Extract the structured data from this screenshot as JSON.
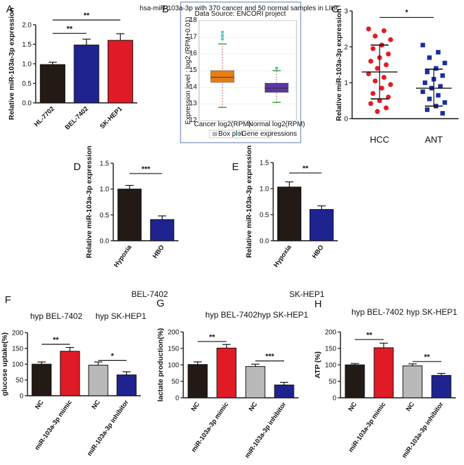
{
  "colors": {
    "black": "#231a16",
    "blue": "#1f2390",
    "red": "#e01b25",
    "gray": "#b9b9b9",
    "scatter_red": "#e51b26",
    "scatter_blue": "#1a2fa0",
    "box_orange": "#ea7d12",
    "box_purple": "#5a37a5"
  },
  "chart_data": [
    {
      "id": "A",
      "panel_label": "A",
      "type": "bar",
      "ylabel": "Relative miR-103a-3p expression",
      "ylim": [
        0,
        2.0
      ],
      "yticks": [
        "0.0",
        "0.5",
        "1.0",
        "1.5",
        "2.0"
      ],
      "ytick_values": [
        0,
        0.5,
        1.0,
        1.5,
        2.0
      ],
      "categories": [
        "HL-7702",
        "BEL-7402",
        "SK-HEP1"
      ],
      "values": [
        0.98,
        1.48,
        1.6
      ],
      "errors": [
        0.06,
        0.15,
        0.17
      ],
      "bar_colors": [
        "black",
        "blue",
        "red"
      ],
      "sig": [
        {
          "from": 0,
          "to": 1,
          "label": "**",
          "y": 1.78
        },
        {
          "from": 0,
          "to": 2,
          "label": "**",
          "y": 2.12
        }
      ]
    },
    {
      "id": "B",
      "panel_label": "B",
      "type": "box",
      "title": "hsa-miR-103a-3p with 370 cancer and 50 normal samples in LIHC",
      "subtitle": "Data Source: ENCORI project",
      "ylabel": "Expression level : log2 (RPM+0.01)",
      "ylim": [
        12,
        18
      ],
      "yticks": [
        "12",
        "13",
        "14",
        "15",
        "16",
        "17",
        "18"
      ],
      "ytick_values": [
        12,
        13,
        14,
        15,
        16,
        17,
        18
      ],
      "categories": [
        "Cancer log2(RPM)",
        "Normal log2(RPM)"
      ],
      "boxes": [
        {
          "q1": 14.3,
          "median": 14.6,
          "q3": 15.0,
          "whisker_low": 12.8,
          "whisker_high": 16.6,
          "outliers": [
            16.9,
            17.1,
            17.3
          ],
          "color": "box_orange"
        },
        {
          "q1": 13.7,
          "median": 13.95,
          "q3": 14.25,
          "whisker_low": 13.1,
          "whisker_high": 15.0,
          "outliers": [
            15.15
          ],
          "color": "box_purple"
        }
      ],
      "legend": [
        "Box plot",
        "Gene expressions"
      ]
    },
    {
      "id": "C",
      "panel_label": "C",
      "type": "scatter",
      "ylabel": "Relative miR-103a-3p expression",
      "ylim": [
        0,
        3
      ],
      "yticks": [
        "0",
        "1",
        "2",
        "3"
      ],
      "ytick_values": [
        0,
        1,
        2,
        3
      ],
      "categories": [
        "HCC",
        "ANT"
      ],
      "series": [
        {
          "name": "HCC",
          "values": [
            2.5,
            2.45,
            2.3,
            2.2,
            2.05,
            1.95,
            1.8,
            1.7,
            1.6,
            1.5,
            1.4,
            1.25,
            1.15,
            1.05,
            0.95,
            0.85,
            0.7,
            0.6,
            0.5,
            0.42,
            0.3,
            0.2
          ],
          "mean": 1.3,
          "sd_low": 0.55,
          "sd_high": 2.05,
          "color": "scatter_red",
          "marker": "circle"
        },
        {
          "name": "ANT",
          "values": [
            2.05,
            1.85,
            1.7,
            1.55,
            1.4,
            1.3,
            1.2,
            1.1,
            1.0,
            0.9,
            0.85,
            0.75,
            0.65,
            0.55,
            0.45,
            0.35,
            0.25,
            0.15
          ],
          "mean": 0.85,
          "sd_low": 0.35,
          "sd_high": 1.38,
          "color": "scatter_blue",
          "marker": "square"
        }
      ],
      "sig": [
        {
          "from": 0,
          "to": 1,
          "label": "*",
          "y": 2.82
        }
      ]
    },
    {
      "id": "D",
      "panel_label": "D",
      "type": "bar",
      "caption": "BEL-7402",
      "ylabel": "Relative miR-103a-3p expression",
      "ylim": [
        0,
        1.5
      ],
      "yticks": [
        "0.0",
        "0.5",
        "1.0",
        "1.5"
      ],
      "ytick_values": [
        0,
        0.5,
        1.0,
        1.5
      ],
      "categories": [
        "Hypoxia",
        "HBO"
      ],
      "values": [
        1.0,
        0.41
      ],
      "errors": [
        0.07,
        0.07
      ],
      "bar_colors": [
        "black",
        "blue"
      ],
      "sig": [
        {
          "from": 0,
          "to": 1,
          "label": "***",
          "y": 1.3
        }
      ]
    },
    {
      "id": "E",
      "panel_label": "E",
      "type": "bar",
      "caption": "SK-HEP1",
      "ylabel": "Relative miR-103a-3p expression",
      "ylim": [
        0,
        1.5
      ],
      "yticks": [
        "0.0",
        "0.5",
        "1.0",
        "1.5"
      ],
      "ytick_values": [
        0,
        0.5,
        1.0,
        1.5
      ],
      "categories": [
        "Hypoxia",
        "HBO"
      ],
      "values": [
        1.03,
        0.6
      ],
      "errors": [
        0.1,
        0.07
      ],
      "bar_colors": [
        "black",
        "blue"
      ],
      "sig": [
        {
          "from": 0,
          "to": 1,
          "label": "**",
          "y": 1.3
        }
      ]
    },
    {
      "id": "F",
      "panel_label": "F",
      "type": "bar",
      "group_titles": [
        "hyp BEL-7402",
        "hyp SK-HEP1"
      ],
      "ylabel": "glucose uptake(%)",
      "ylim": [
        0,
        200
      ],
      "yticks": [
        "0",
        "50",
        "100",
        "150",
        "200"
      ],
      "ytick_values": [
        0,
        50,
        100,
        150,
        200
      ],
      "categories": [
        "NC",
        "miR-103a-3p mimic",
        "NC",
        "miR-103a-3p inhibitor"
      ],
      "values": [
        100,
        141,
        97,
        66
      ],
      "errors": [
        7,
        12,
        10,
        10
      ],
      "bar_colors": [
        "black",
        "red",
        "gray",
        "blue"
      ],
      "sig": [
        {
          "from": 0,
          "to": 1,
          "label": "**",
          "y": 163
        },
        {
          "from": 2,
          "to": 3,
          "label": "*",
          "y": 112
        }
      ]
    },
    {
      "id": "G",
      "panel_label": "G",
      "type": "bar",
      "group_titles": [
        "hyp BEL-7402",
        "hyp SK-HEP1"
      ],
      "ylabel": "lactate production(%)",
      "ylim": [
        0,
        200
      ],
      "yticks": [
        "0",
        "50",
        "100",
        "150",
        "200"
      ],
      "ytick_values": [
        0,
        50,
        100,
        150,
        200
      ],
      "categories": [
        "NC",
        "miR-103a-3p mimic",
        "NC",
        "miR-103a-3p inhibitor"
      ],
      "values": [
        101,
        151,
        95,
        39
      ],
      "errors": [
        8,
        11,
        7,
        8
      ],
      "bar_colors": [
        "black",
        "red",
        "gray",
        "blue"
      ],
      "sig": [
        {
          "from": 0,
          "to": 1,
          "label": "**",
          "y": 171
        },
        {
          "from": 2,
          "to": 3,
          "label": "***",
          "y": 112
        }
      ]
    },
    {
      "id": "H",
      "panel_label": "H",
      "type": "bar",
      "group_titles": [
        "hyp BEL-7402",
        "hyp SK-HEP1"
      ],
      "ylabel": "ATP (%)",
      "ylim": [
        0,
        200
      ],
      "yticks": [
        "0",
        "50",
        "100",
        "150",
        "200"
      ],
      "ytick_values": [
        0,
        50,
        100,
        150,
        200
      ],
      "categories": [
        "NC",
        "miR-103a-3p mimic",
        "NC",
        "miR-103a-3p inhibitor"
      ],
      "values": [
        100,
        152,
        97,
        68
      ],
      "errors": [
        4,
        14,
        6,
        6
      ],
      "bar_colors": [
        "black",
        "red",
        "gray",
        "blue"
      ],
      "sig": [
        {
          "from": 0,
          "to": 1,
          "label": "**",
          "y": 177
        },
        {
          "from": 2,
          "to": 3,
          "label": "**",
          "y": 110
        }
      ]
    }
  ]
}
